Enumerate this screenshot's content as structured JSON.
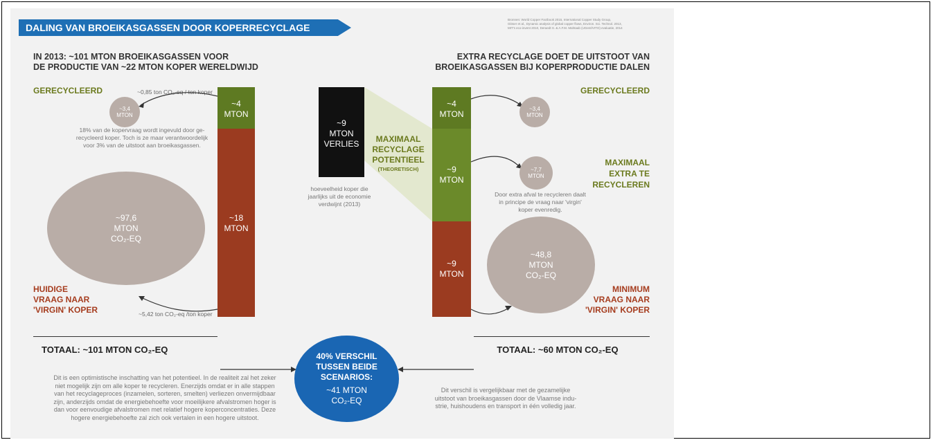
{
  "title": "DALING VAN BROEIKASGASSEN DOOR KOPERRECYCLAGE",
  "sources": "Bronnen: World Copper Factbook 2015, International Copper Study Group,\nGlöser et al., Dynamic analysis of global copper flows, Environ. Sci. Technol. 2013,\nMIT's eco-invent 2010, Deraedt S. & A.F.M. Mahtaab (UGent/VITO) evaluatie, 2014",
  "left": {
    "heading": "IN 2013:  ~101 MTON BROEIKASGASSEN  VOOR\nDE PRODUCTIE VAN ~22 MTON KOPER WERELDWIJD",
    "recycled_label": "GERECYCLEERD",
    "recycled_factor": "~0,85 ton CO₂-eq / ton koper",
    "recycled_circle": "~3,4\nMTON",
    "recycled_note": "18% van de kopervraag wordt ingevuld door ge-\nrecycleerd koper. Toch is ze maar verantwoordelijk\nvoor 3% van de uitstoot aan broeikasgassen.",
    "bar_top": "~4\nMTON",
    "bar_bottom": "~18\nMTON",
    "virgin_circle": "~97,6\nMTON\nCO₂-EQ",
    "virgin_label": "HUIDIGE\nVRAAG NAAR\n'VIRGIN' KOPER",
    "virgin_factor": "~5,42 ton CO₂-eq /ton koper",
    "total": "TOTAAL: ~101 MTON CO₂-EQ",
    "bottom_note": "Dit is een optimistische inschatting van het potentieel. In de realiteit zal het zeker\nniet mogelijk zijn om alle koper te recycleren. Enerzijds omdat er in alle stappen\nvan het recyclageproces (inzamelen, sorteren, smelten) verliezen onvermijdbaar\nzijn, anderzijds omdat de energiebehoefte voor moeilijkere afvalstromen hoger is\ndan voor eenvoudige afvalstromen met relatief hogere koperconcentraties. Deze\nhogere energiebehoefte zal zich ook vertalen in een hogere uitstoot."
  },
  "middle": {
    "loss_box": "~9\nMTON\nVERLIES",
    "loss_note": "hoeveelheid koper die\njaarlijks uit de economie\nverdwijnt (2013)",
    "potential_label": "MAXIMAAL\nRECYCLAGE\nPOTENTIEEL",
    "potential_sub": "(THEORETISCH)",
    "diff_circle_top": "40% VERSCHIL\nTUSSEN BEIDE\nSCENARIOS:",
    "diff_circle_bottom": "~41 MTON\nCO₂-EQ"
  },
  "right": {
    "heading": "EXTRA RECYCLAGE DOET DE UITSTOOT VAN\nBROEIKASGASSEN BIJ KOPERPRODUCTIE DALEN",
    "recycled_label": "GERECYCLEERD",
    "bar_top": "~4\nMTON",
    "bar_middle": "~9\nMTON",
    "bar_bottom": "~9\nMTON",
    "recycled_circle": "~3,4\nMTON",
    "extra_circle": "~7,7\nMTON",
    "extra_label": "MAXIMAAL\nEXTRA TE\nRECYCLEREN",
    "extra_note": "Door extra afval te recycleren daalt\nin principe de vraag naar 'virgin'\nkoper evenredig.",
    "virgin_circle": "~48,8\nMTON\nCO₂-EQ",
    "virgin_label": "MINIMUM\nVRAAG NAAR\n'VIRGIN' KOPER",
    "total": "TOTAAL: ~60 MTON CO₂-EQ",
    "bottom_note": "Dit verschil is vergelijkbaar met de gezamelijke\nuitstoot van broeikasgassen door de Vlaamse indu-\nstrie, huishoudens en transport in één volledig jaar."
  },
  "colors": {
    "banner": "#1e6fb5",
    "green": "#5e7a22",
    "red": "#9b3b20",
    "circle": "#b9ada7",
    "black": "#111111",
    "blue_circle": "#1a66b3"
  }
}
